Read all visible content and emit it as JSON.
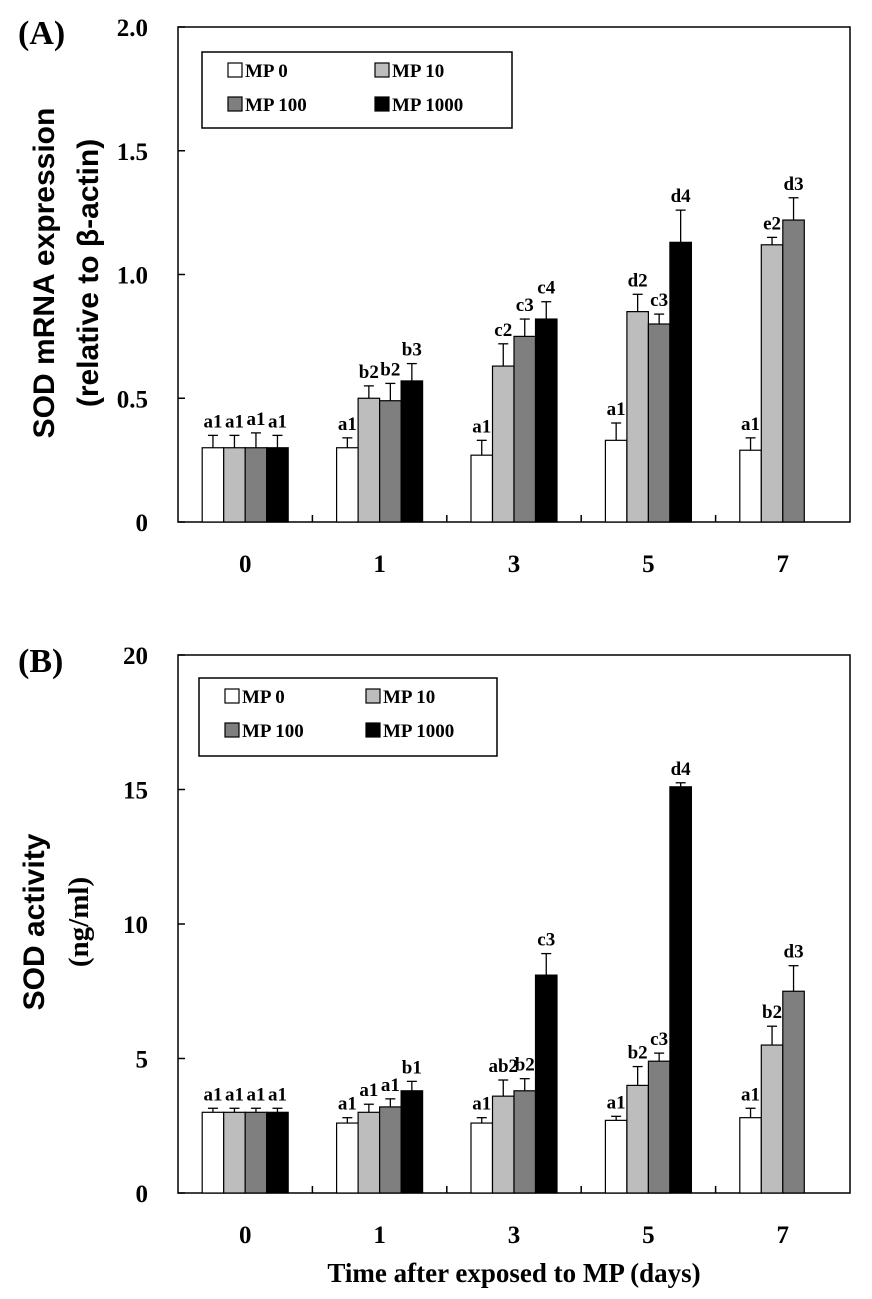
{
  "chart_data": [
    {
      "type": "bar",
      "panel_label": "(A)",
      "ylabel": "SOD mRNA expression",
      "ylabel2": "(relative to β-actin)",
      "xlabel": "",
      "categories": [
        "0",
        "1",
        "3",
        "5",
        "7"
      ],
      "ylim": [
        0,
        2.0
      ],
      "yticks": [
        0,
        0.5,
        1.0,
        1.5,
        2.0
      ],
      "ytick_labels": [
        "0",
        "0.5",
        "1.0",
        "1.5",
        "2.0"
      ],
      "legend_position": "top-left",
      "series": [
        {
          "name": "MP 0",
          "color": "#ffffff",
          "values": [
            0.3,
            0.3,
            0.27,
            0.33,
            0.29
          ],
          "errors": [
            0.05,
            0.04,
            0.06,
            0.07,
            0.05
          ],
          "labels": [
            "a1",
            "a1",
            "a1",
            "a1",
            "a1"
          ]
        },
        {
          "name": "MP 10",
          "color": "#bdbdbd",
          "values": [
            0.3,
            0.5,
            0.63,
            0.85,
            1.12
          ],
          "errors": [
            0.05,
            0.05,
            0.09,
            0.07,
            0.03
          ],
          "labels": [
            "a1",
            "b2",
            "c2",
            "d2",
            "e2"
          ]
        },
        {
          "name": "MP 100",
          "color": "#7f7f7f",
          "values": [
            0.3,
            0.49,
            0.75,
            0.8,
            1.22
          ],
          "errors": [
            0.06,
            0.07,
            0.07,
            0.04,
            0.09
          ],
          "labels": [
            "a1",
            "b2",
            "c3",
            "c3",
            "d3"
          ]
        },
        {
          "name": "MP 1000",
          "color": "#000000",
          "values": [
            0.3,
            0.57,
            0.82,
            1.13,
            null
          ],
          "errors": [
            0.05,
            0.07,
            0.07,
            0.13,
            null
          ],
          "labels": [
            "a1",
            "b3",
            "c4",
            "d4",
            ""
          ]
        }
      ]
    },
    {
      "type": "bar",
      "panel_label": "(B)",
      "ylabel": "SOD activity",
      "ylabel2": "(ng/ml)",
      "xlabel": "Time after exposed to MP (days)",
      "categories": [
        "0",
        "1",
        "3",
        "5",
        "7"
      ],
      "ylim": [
        0,
        20
      ],
      "yticks": [
        0,
        5,
        10,
        15,
        20
      ],
      "ytick_labels": [
        "0",
        "5",
        "10",
        "15",
        "20"
      ],
      "legend_position": "top-left",
      "series": [
        {
          "name": "MP 0",
          "color": "#ffffff",
          "values": [
            3.0,
            2.6,
            2.6,
            2.7,
            2.8
          ],
          "errors": [
            0.15,
            0.2,
            0.2,
            0.15,
            0.35
          ],
          "labels": [
            "a1",
            "a1",
            "a1",
            "a1",
            "a1"
          ]
        },
        {
          "name": "MP 10",
          "color": "#bdbdbd",
          "values": [
            3.0,
            3.0,
            3.6,
            4.0,
            5.5
          ],
          "errors": [
            0.15,
            0.3,
            0.6,
            0.7,
            0.7
          ],
          "labels": [
            "a1",
            "a1",
            "ab2",
            "b2",
            "b2"
          ]
        },
        {
          "name": "MP 100",
          "color": "#7f7f7f",
          "values": [
            3.0,
            3.2,
            3.8,
            4.9,
            7.5
          ],
          "errors": [
            0.15,
            0.3,
            0.45,
            0.3,
            0.95
          ],
          "labels": [
            "a1",
            "a1",
            "b2",
            "c3",
            "d3"
          ]
        },
        {
          "name": "MP 1000",
          "color": "#000000",
          "values": [
            3.0,
            3.8,
            8.1,
            15.1,
            null
          ],
          "errors": [
            0.15,
            0.35,
            0.8,
            0.15,
            null
          ],
          "labels": [
            "a1",
            "b1",
            "c3",
            "d4",
            ""
          ]
        }
      ]
    }
  ]
}
